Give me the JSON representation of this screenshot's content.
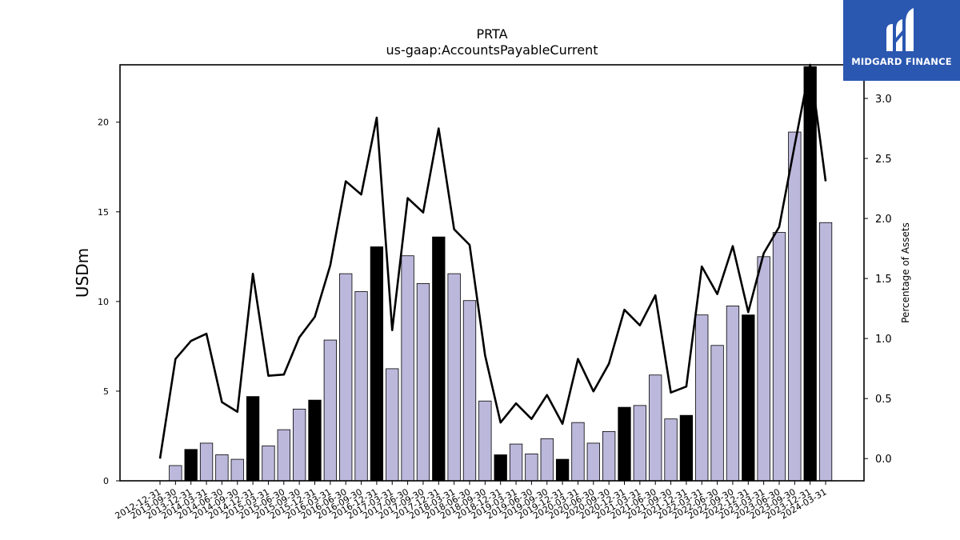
{
  "chart_data": {
    "type": "bar+line",
    "title": "PRTA",
    "subtitle": "us-gaap:AccountsPayableCurrent",
    "ylabel": "USDm",
    "y2label": "Percentage of Assets",
    "ylim": [
      0,
      23.2
    ],
    "y2lim": [
      -0.185,
      3.28
    ],
    "yticks": [
      "0",
      "5",
      "10",
      "15",
      "20"
    ],
    "y2ticks": [
      "0.0",
      "0.5",
      "1.0",
      "1.5",
      "2.0",
      "2.5",
      "3.0"
    ],
    "categories": [
      "2012-12-31",
      "2013-09-30",
      "2013-12-31",
      "2014-03-31",
      "2014-06-30",
      "2014-09-30",
      "2014-12-31",
      "2015-03-31",
      "2015-06-30",
      "2015-09-30",
      "2015-12-31",
      "2016-03-31",
      "2016-06-30",
      "2016-09-30",
      "2016-12-31",
      "2017-03-31",
      "2017-06-30",
      "2017-09-30",
      "2017-12-31",
      "2018-03-31",
      "2018-06-30",
      "2018-09-30",
      "2018-12-31",
      "2019-03-31",
      "2019-06-30",
      "2019-09-30",
      "2019-12-31",
      "2020-03-31",
      "2020-06-30",
      "2020-09-30",
      "2020-12-31",
      "2021-03-31",
      "2021-06-30",
      "2021-09-30",
      "2021-12-31",
      "2022-03-31",
      "2022-06-30",
      "2022-09-30",
      "2022-12-31",
      "2023-03-31",
      "2023-06-30",
      "2023-09-30",
      "2023-12-31",
      "2024-03-31"
    ],
    "series": [
      {
        "name": "AccountsPayableCurrent",
        "kind": "bar",
        "values": [
          0,
          0.85,
          1.75,
          2.1,
          1.45,
          1.2,
          4.7,
          1.95,
          2.85,
          4.0,
          4.5,
          7.85,
          11.55,
          10.55,
          13.05,
          6.25,
          12.55,
          11.0,
          13.6,
          11.55,
          10.05,
          4.45,
          1.45,
          2.05,
          1.5,
          2.35,
          1.2,
          3.25,
          2.1,
          2.75,
          4.1,
          4.2,
          5.9,
          3.45,
          3.65,
          9.25,
          7.55,
          9.75,
          9.25,
          12.5,
          13.85,
          19.45,
          23.1,
          14.4
        ],
        "highlight": [
          false,
          false,
          true,
          false,
          false,
          false,
          true,
          false,
          false,
          false,
          true,
          false,
          false,
          false,
          true,
          false,
          false,
          false,
          true,
          false,
          false,
          false,
          true,
          false,
          false,
          false,
          true,
          false,
          false,
          false,
          true,
          false,
          false,
          false,
          true,
          false,
          false,
          false,
          true,
          false,
          false,
          false,
          true,
          false
        ]
      },
      {
        "name": "Percentage of Assets",
        "kind": "line",
        "axis": "right",
        "values": [
          0.0,
          0.83,
          0.98,
          1.04,
          0.47,
          0.39,
          1.54,
          0.69,
          0.7,
          1.01,
          1.18,
          1.61,
          2.31,
          2.2,
          2.84,
          1.07,
          2.17,
          2.05,
          2.75,
          1.91,
          1.78,
          0.86,
          0.3,
          0.46,
          0.33,
          0.53,
          0.29,
          0.83,
          0.56,
          0.79,
          1.24,
          1.11,
          1.36,
          0.55,
          0.6,
          1.6,
          1.37,
          1.77,
          1.22,
          1.71,
          1.93,
          2.61,
          3.37,
          2.31
        ]
      }
    ],
    "colors": {
      "bar_fill": "#bcb8dc",
      "bar_highlight": "#000000",
      "bar_edge": "#000000",
      "line": "#000000"
    },
    "grid": false
  },
  "logo": {
    "text": "MIDGARD FINANCE",
    "background": "#2a57b0"
  }
}
